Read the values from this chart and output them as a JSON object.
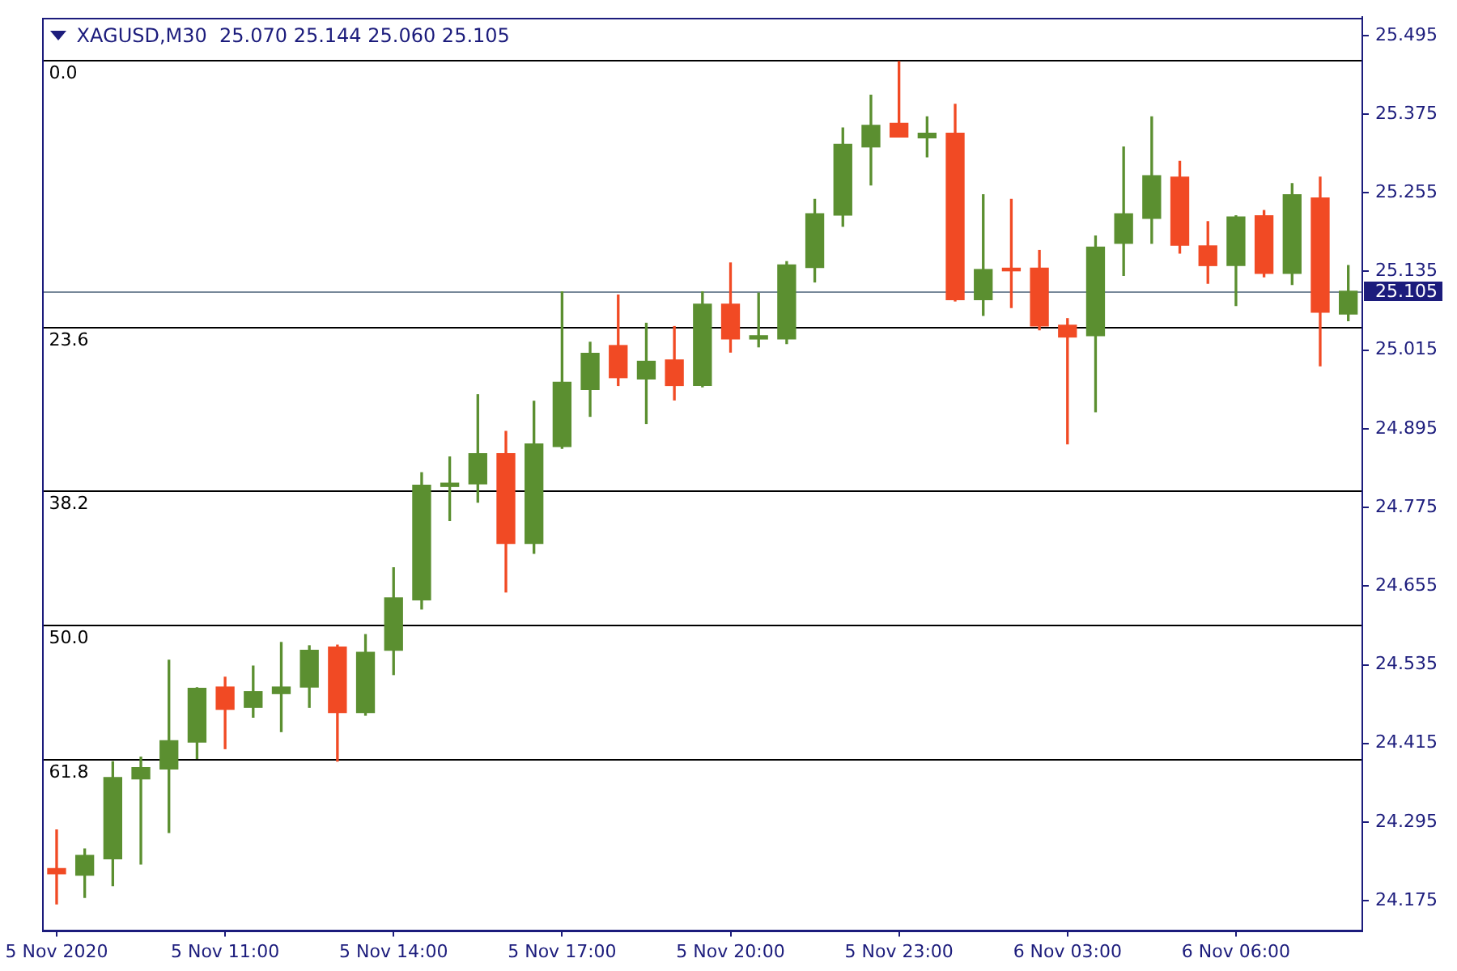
{
  "chart_data": {
    "type": "candlestick",
    "title": "XAGUSD,M30  25.070 25.144 25.060 25.105",
    "categories": [
      "5 Nov 2020",
      null,
      null,
      null,
      null,
      null,
      "5 Nov 11:00",
      null,
      null,
      null,
      null,
      null,
      "5 Nov 14:00",
      null,
      null,
      null,
      null,
      null,
      "5 Nov 17:00",
      null,
      null,
      null,
      null,
      null,
      "5 Nov 20:00",
      null,
      null,
      null,
      null,
      null,
      "5 Nov 23:00",
      null,
      null,
      null,
      null,
      null,
      "6 Nov 03:00",
      null,
      null,
      null,
      null,
      null,
      "6 Nov 06:00",
      null,
      null,
      null,
      null
    ],
    "ohlc": [
      [
        24.224,
        24.283,
        24.17,
        24.216
      ],
      [
        24.214,
        24.254,
        24.18,
        24.244
      ],
      [
        24.239,
        24.387,
        24.198,
        24.363
      ],
      [
        24.361,
        24.394,
        24.231,
        24.378
      ],
      [
        24.376,
        24.542,
        24.279,
        24.419
      ],
      [
        24.417,
        24.5,
        24.392,
        24.499
      ],
      [
        24.501,
        24.516,
        24.407,
        24.467
      ],
      [
        24.47,
        24.533,
        24.455,
        24.494
      ],
      [
        24.491,
        24.569,
        24.433,
        24.501
      ],
      [
        24.501,
        24.564,
        24.47,
        24.557
      ],
      [
        24.562,
        24.565,
        24.388,
        24.462
      ],
      [
        24.462,
        24.581,
        24.458,
        24.554
      ],
      [
        24.557,
        24.683,
        24.52,
        24.637
      ],
      [
        24.634,
        24.828,
        24.62,
        24.809
      ],
      [
        24.807,
        24.852,
        24.755,
        24.812
      ],
      [
        24.811,
        24.947,
        24.783,
        24.857
      ],
      [
        24.857,
        24.891,
        24.646,
        24.72
      ],
      [
        24.72,
        24.937,
        24.705,
        24.872
      ],
      [
        24.868,
        25.104,
        24.865,
        24.966
      ],
      [
        24.955,
        25.027,
        24.914,
        25.01
      ],
      [
        25.022,
        25.099,
        24.961,
        24.973
      ],
      [
        24.971,
        25.056,
        24.903,
        24.998
      ],
      [
        25.0,
        25.051,
        24.939,
        24.961
      ],
      [
        24.961,
        25.104,
        24.959,
        25.085
      ],
      [
        25.085,
        25.148,
        25.012,
        25.032
      ],
      [
        25.032,
        25.102,
        25.02,
        25.037
      ],
      [
        25.032,
        25.15,
        25.025,
        25.145
      ],
      [
        25.141,
        25.245,
        25.119,
        25.223
      ],
      [
        25.221,
        25.354,
        25.204,
        25.329
      ],
      [
        25.325,
        25.404,
        25.267,
        25.358
      ],
      [
        25.361,
        25.455,
        25.34,
        25.34
      ],
      [
        25.339,
        25.371,
        25.31,
        25.346
      ],
      [
        25.346,
        25.39,
        25.09,
        25.092
      ],
      [
        25.092,
        25.252,
        25.068,
        25.138
      ],
      [
        25.14,
        25.245,
        25.08,
        25.136
      ],
      [
        25.14,
        25.167,
        25.046,
        25.052
      ],
      [
        25.053,
        25.063,
        24.872,
        25.035
      ],
      [
        25.037,
        25.189,
        24.921,
        25.172
      ],
      [
        25.178,
        25.325,
        25.129,
        25.223
      ],
      [
        25.216,
        25.371,
        25.178,
        25.281
      ],
      [
        25.279,
        25.303,
        25.163,
        25.175
      ],
      [
        25.174,
        25.211,
        25.117,
        25.144
      ],
      [
        25.144,
        25.22,
        25.083,
        25.218
      ],
      [
        25.22,
        25.228,
        25.127,
        25.132
      ],
      [
        25.132,
        25.269,
        25.115,
        25.252
      ],
      [
        25.247,
        25.279,
        24.991,
        25.073
      ],
      [
        25.07,
        25.144,
        25.06,
        25.105
      ]
    ],
    "colors": [
      "#f14a24",
      "#5b8f30",
      "#5b8f30",
      "#5b8f30",
      "#5b8f30",
      "#5b8f30",
      "#f14a24",
      "#5b8f30",
      "#5b8f30",
      "#5b8f30",
      "#f14a24",
      "#5b8f30",
      "#5b8f30",
      "#5b8f30",
      "#5b8f30",
      "#5b8f30",
      "#f14a24",
      "#5b8f30",
      "#5b8f30",
      "#5b8f30",
      "#f14a24",
      "#5b8f30",
      "#f14a24",
      "#5b8f30",
      "#f14a24",
      "#5b8f30",
      "#5b8f30",
      "#5b8f30",
      "#5b8f30",
      "#5b8f30",
      "#f14a24",
      "#5b8f30",
      "#f14a24",
      "#5b8f30",
      "#f14a24",
      "#f14a24",
      "#f14a24",
      "#5b8f30",
      "#5b8f30",
      "#5b8f30",
      "#f14a24",
      "#f14a24",
      "#5b8f30",
      "#f14a24",
      "#5b8f30",
      "#f14a24",
      "#5b8f30"
    ],
    "ylim": [
      24.13,
      25.523
    ],
    "yticks": [
      24.175,
      24.295,
      24.415,
      24.535,
      24.655,
      24.775,
      24.895,
      25.015,
      25.135,
      25.255,
      25.375,
      25.495
    ],
    "ref_lines": [
      {
        "axis": "y",
        "value": 25.459,
        "color": "#000000"
      },
      {
        "axis": "y",
        "value": 25.051,
        "color": "#000000"
      },
      {
        "axis": "y",
        "value": 24.8,
        "color": "#000000"
      },
      {
        "axis": "y",
        "value": 24.596,
        "color": "#000000"
      },
      {
        "axis": "y",
        "value": 24.392,
        "color": "#000000"
      },
      {
        "axis": "y",
        "value": 25.105,
        "label": "25.105",
        "color": "#778899"
      }
    ],
    "annotations": [
      {
        "text": "0.0",
        "y": 25.459
      },
      {
        "text": "23.6",
        "y": 25.051
      },
      {
        "text": "38.2",
        "y": 24.8
      },
      {
        "text": "50.0",
        "y": 24.596
      },
      {
        "text": "61.8",
        "y": 24.392
      }
    ]
  }
}
